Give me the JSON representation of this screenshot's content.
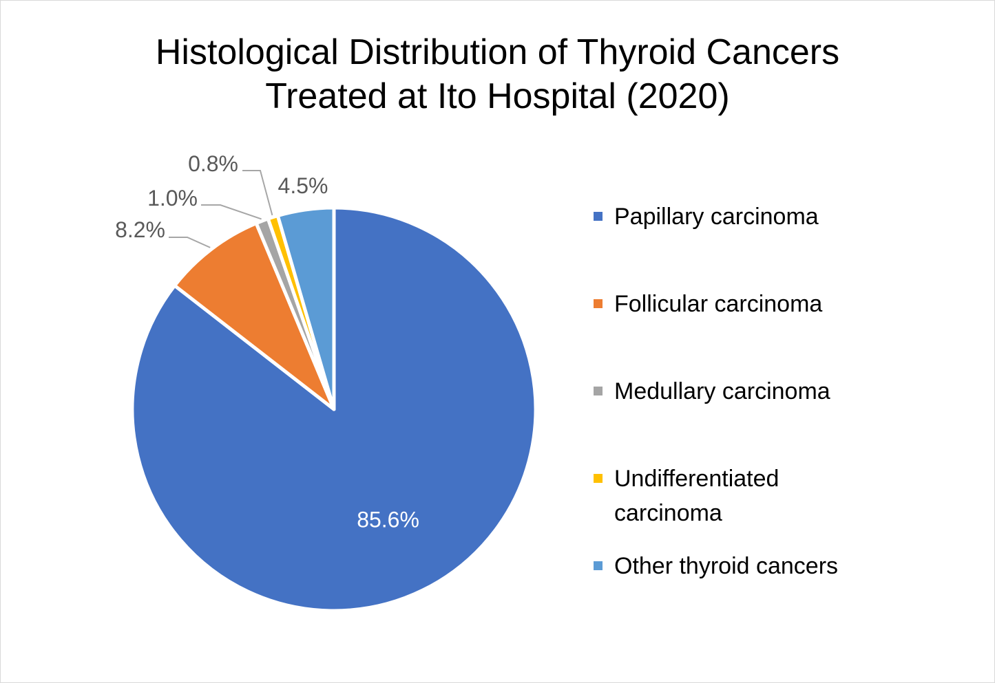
{
  "chart_data": {
    "type": "pie",
    "title": "Histological Distribution of Thyroid Cancers Treated at Ito Hospital (2020)",
    "title_lines": [
      "Histological Distribution of Thyroid Cancers",
      "Treated at Ito Hospital (2020)"
    ],
    "categories": [
      "Papillary carcinoma",
      "Follicular carcinoma",
      "Medullary carcinoma",
      "Undifferentiated carcinoma",
      "Other thyroid cancers"
    ],
    "values": [
      85.6,
      8.2,
      1.0,
      0.8,
      4.5
    ],
    "data_labels": [
      "85.6%",
      "8.2%",
      "1.0%",
      "0.8%",
      "4.5%"
    ],
    "colors": [
      "#4472C4",
      "#ED7D31",
      "#A5A5A5",
      "#FFC000",
      "#5B9BD5"
    ],
    "start_angle_deg": 0,
    "direction": "clockwise",
    "legend": "right"
  }
}
